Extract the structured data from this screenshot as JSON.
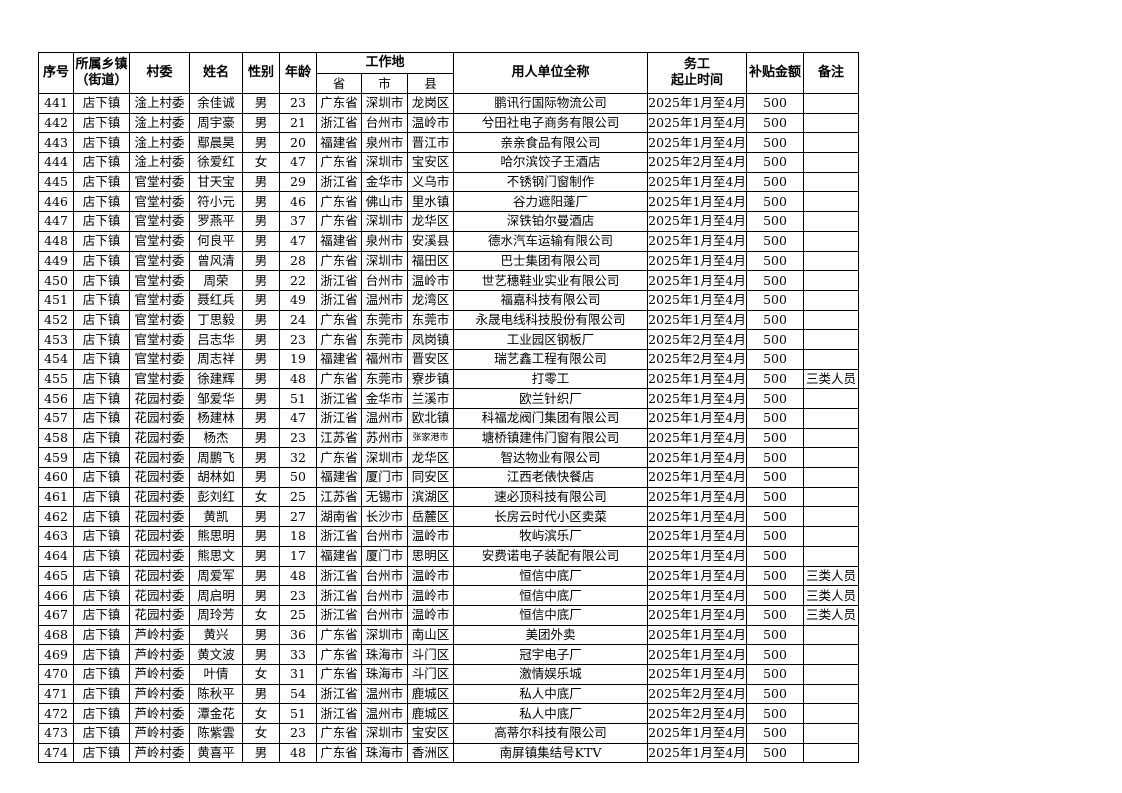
{
  "headers": {
    "seq": "序号",
    "town": "所属乡镇\n（街道）",
    "village": "村委",
    "name": "姓名",
    "gender": "性别",
    "age": "年龄",
    "workplace": "工作地",
    "province": "省",
    "city": "市",
    "county": "县",
    "employer": "用人单位全称",
    "period": "务工\n起止时间",
    "subsidy": "补贴金额",
    "remark": "备注"
  },
  "rows": [
    [
      "441",
      "店下镇",
      "淦上村委",
      "余佳诚",
      "男",
      "23",
      "广东省",
      "深圳市",
      "龙岗区",
      "鹏讯行国际物流公司",
      "2025年1月至4月",
      "500",
      ""
    ],
    [
      "442",
      "店下镇",
      "淦上村委",
      "周宇豪",
      "男",
      "21",
      "浙江省",
      "台州市",
      "温岭市",
      "兮田社电子商务有限公司",
      "2025年1月至4月",
      "500",
      ""
    ],
    [
      "443",
      "店下镇",
      "淦上村委",
      "鄢晨昊",
      "男",
      "20",
      "福建省",
      "泉州市",
      "晋江市",
      "亲亲食品有限公司",
      "2025年1月至4月",
      "500",
      ""
    ],
    [
      "444",
      "店下镇",
      "淦上村委",
      "徐爱红",
      "女",
      "47",
      "广东省",
      "深圳市",
      "宝安区",
      "哈尔滨饺子王酒店",
      "2025年2月至4月",
      "500",
      ""
    ],
    [
      "445",
      "店下镇",
      "官堂村委",
      "甘天宝",
      "男",
      "29",
      "浙江省",
      "金华市",
      "义乌市",
      "不锈钢门窗制作",
      "2025年1月至4月",
      "500",
      ""
    ],
    [
      "446",
      "店下镇",
      "官堂村委",
      "符小元",
      "男",
      "46",
      "广东省",
      "佛山市",
      "里水镇",
      "谷力遮阳蓬厂",
      "2025年1月至4月",
      "500",
      ""
    ],
    [
      "447",
      "店下镇",
      "官堂村委",
      "罗燕平",
      "男",
      "37",
      "广东省",
      "深圳市",
      "龙华区",
      "深铁铂尔曼酒店",
      "2025年1月至4月",
      "500",
      ""
    ],
    [
      "448",
      "店下镇",
      "官堂村委",
      "何良平",
      "男",
      "47",
      "福建省",
      "泉州市",
      "安溪县",
      "德水汽车运输有限公司",
      "2025年1月至4月",
      "500",
      ""
    ],
    [
      "449",
      "店下镇",
      "官堂村委",
      "曾风清",
      "男",
      "28",
      "广东省",
      "深圳市",
      "福田区",
      "巴士集团有限公司",
      "2025年1月至4月",
      "500",
      ""
    ],
    [
      "450",
      "店下镇",
      "官堂村委",
      "周荣",
      "男",
      "22",
      "浙江省",
      "台州市",
      "温岭市",
      "世艺穗鞋业实业有限公司",
      "2025年1月至4月",
      "500",
      ""
    ],
    [
      "451",
      "店下镇",
      "官堂村委",
      "聂红兵",
      "男",
      "49",
      "浙江省",
      "温州市",
      "龙湾区",
      "福嘉科技有限公司",
      "2025年1月至4月",
      "500",
      ""
    ],
    [
      "452",
      "店下镇",
      "官堂村委",
      "丁思毅",
      "男",
      "24",
      "广东省",
      "东莞市",
      "东莞市",
      "永晟电线科技股份有限公司",
      "2025年1月至4月",
      "500",
      ""
    ],
    [
      "453",
      "店下镇",
      "官堂村委",
      "吕志华",
      "男",
      "23",
      "广东省",
      "东莞市",
      "凤岗镇",
      "工业园区钢板厂",
      "2025年2月至4月",
      "500",
      ""
    ],
    [
      "454",
      "店下镇",
      "官堂村委",
      "周志祥",
      "男",
      "19",
      "福建省",
      "福州市",
      "晋安区",
      "瑞艺鑫工程有限公司",
      "2025年2月至4月",
      "500",
      ""
    ],
    [
      "455",
      "店下镇",
      "官堂村委",
      "徐建辉",
      "男",
      "48",
      "广东省",
      "东莞市",
      "寮步镇",
      "打零工",
      "2025年1月至4月",
      "500",
      "三类人员"
    ],
    [
      "456",
      "店下镇",
      "花园村委",
      "邹爱华",
      "男",
      "51",
      "浙江省",
      "金华市",
      "兰溪市",
      "欧兰针织厂",
      "2025年1月至4月",
      "500",
      ""
    ],
    [
      "457",
      "店下镇",
      "花园村委",
      "杨建林",
      "男",
      "47",
      "浙江省",
      "温州市",
      "欧北镇",
      "科福龙阀门集团有限公司",
      "2025年1月至4月",
      "500",
      ""
    ],
    [
      "458",
      "店下镇",
      "花园村委",
      "杨杰",
      "男",
      "23",
      "江苏省",
      "苏州市",
      "张家港市",
      "塘桥镇建伟门窗有限公司",
      "2025年1月至4月",
      "500",
      ""
    ],
    [
      "459",
      "店下镇",
      "花园村委",
      "周鹏飞",
      "男",
      "32",
      "广东省",
      "深圳市",
      "龙华区",
      "智达物业有限公司",
      "2025年1月至4月",
      "500",
      ""
    ],
    [
      "460",
      "店下镇",
      "花园村委",
      "胡林如",
      "男",
      "50",
      "福建省",
      "厦门市",
      "同安区",
      "江西老俵快餐店",
      "2025年1月至4月",
      "500",
      ""
    ],
    [
      "461",
      "店下镇",
      "花园村委",
      "彭刘红",
      "女",
      "25",
      "江苏省",
      "无锡市",
      "滨湖区",
      "速必顶科技有限公司",
      "2025年1月至4月",
      "500",
      ""
    ],
    [
      "462",
      "店下镇",
      "花园村委",
      "黄凯",
      "男",
      "27",
      "湖南省",
      "长沙市",
      "岳麓区",
      "长房云时代小区卖菜",
      "2025年1月至4月",
      "500",
      ""
    ],
    [
      "463",
      "店下镇",
      "花园村委",
      "熊思明",
      "男",
      "18",
      "浙江省",
      "台州市",
      "温岭市",
      "牧屿滨乐厂",
      "2025年1月至4月",
      "500",
      ""
    ],
    [
      "464",
      "店下镇",
      "花园村委",
      "熊思文",
      "男",
      "17",
      "福建省",
      "厦门市",
      "思明区",
      "安费诺电子装配有限公司",
      "2025年1月至4月",
      "500",
      ""
    ],
    [
      "465",
      "店下镇",
      "花园村委",
      "周爱军",
      "男",
      "48",
      "浙江省",
      "台州市",
      "温岭市",
      "恒信中底厂",
      "2025年1月至4月",
      "500",
      "三类人员"
    ],
    [
      "466",
      "店下镇",
      "花园村委",
      "周启明",
      "男",
      "23",
      "浙江省",
      "台州市",
      "温岭市",
      "恒信中底厂",
      "2025年1月至4月",
      "500",
      "三类人员"
    ],
    [
      "467",
      "店下镇",
      "花园村委",
      "周玲芳",
      "女",
      "25",
      "浙江省",
      "台州市",
      "温岭市",
      "恒信中底厂",
      "2025年1月至4月",
      "500",
      "三类人员"
    ],
    [
      "468",
      "店下镇",
      "芦岭村委",
      "黄兴",
      "男",
      "36",
      "广东省",
      "深圳市",
      "南山区",
      "美团外卖",
      "2025年1月至4月",
      "500",
      ""
    ],
    [
      "469",
      "店下镇",
      "芦岭村委",
      "黄文波",
      "男",
      "33",
      "广东省",
      "珠海市",
      "斗门区",
      "冠宇电子厂",
      "2025年1月至4月",
      "500",
      ""
    ],
    [
      "470",
      "店下镇",
      "芦岭村委",
      "叶倩",
      "女",
      "31",
      "广东省",
      "珠海市",
      "斗门区",
      "激情娱乐城",
      "2025年1月至4月",
      "500",
      ""
    ],
    [
      "471",
      "店下镇",
      "芦岭村委",
      "陈秋平",
      "男",
      "54",
      "浙江省",
      "温州市",
      "鹿城区",
      "私人中底厂",
      "2025年2月至4月",
      "500",
      ""
    ],
    [
      "472",
      "店下镇",
      "芦岭村委",
      "潭金花",
      "女",
      "51",
      "浙江省",
      "温州市",
      "鹿城区",
      "私人中底厂",
      "2025年2月至4月",
      "500",
      ""
    ],
    [
      "473",
      "店下镇",
      "芦岭村委",
      "陈紫雲",
      "女",
      "23",
      "广东省",
      "深圳市",
      "宝安区",
      "高蒂尔科技有限公司",
      "2025年1月至4月",
      "500",
      ""
    ],
    [
      "474",
      "店下镇",
      "芦岭村委",
      "黄喜平",
      "男",
      "48",
      "广东省",
      "珠海市",
      "香洲区",
      "南屏镇集结号KTV",
      "2025年1月至4月",
      "500",
      ""
    ]
  ]
}
